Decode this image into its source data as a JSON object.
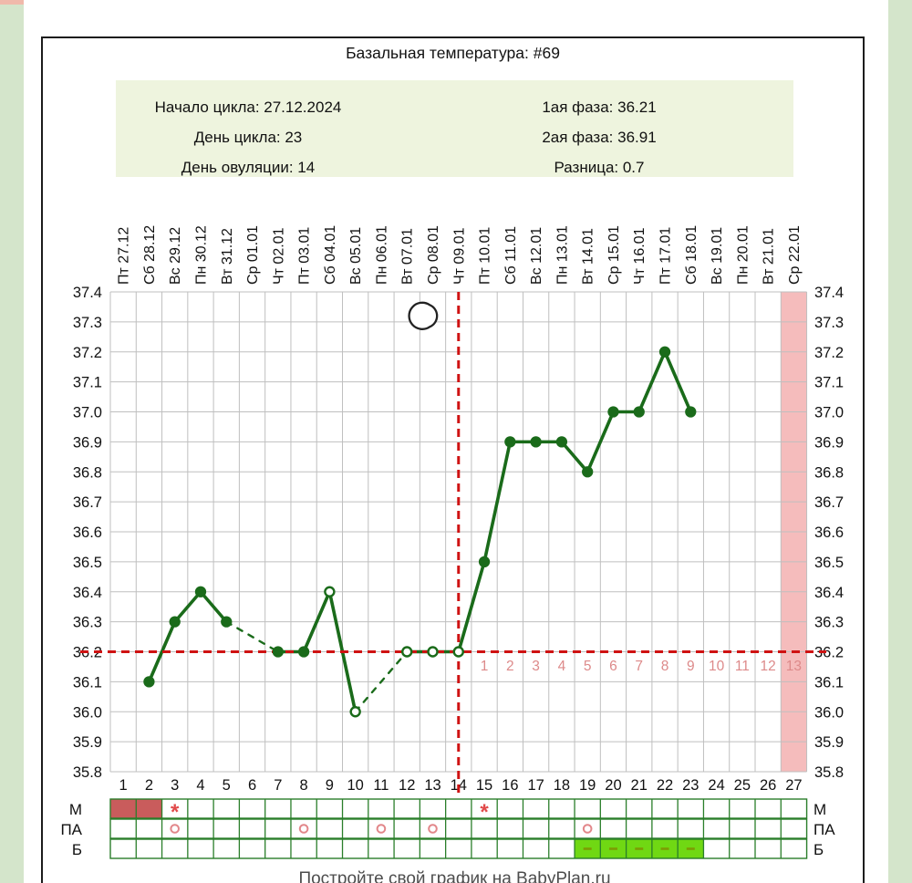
{
  "header": {
    "title": "Базальная температура: #69"
  },
  "info": {
    "left_lines": [
      "Начало цикла: 27.12.2024",
      "День цикла: 23",
      "День овуляции: 14"
    ],
    "right_lines": [
      "1ая фаза: 36.21",
      "2ая фаза: 36.91",
      "Разница: 0.7"
    ]
  },
  "footer": {
    "text": "Постройте свой график на BabyPlan.ru"
  },
  "colors": {
    "line": "#1a6b1a",
    "coverline": "#cf1212",
    "ovulation_line": "#cf1212",
    "dpo_text": "#dd8a8a",
    "grid": "#bfbfbf",
    "axis_text": "#111111",
    "highlight_column": "#f5bcbc",
    "menstruation_fill": "#c95c5c",
    "star": "#e14a4a",
    "circle_mark": "#e2878a",
    "b_cell_fill": "#70d813",
    "b_dash": "#7d9c04",
    "table_border": "#2a7e2a",
    "info_box_bg": "#eef4de",
    "page_strip": "#d4e5cb",
    "corner_block": "#f0b9ab",
    "moon_stroke": "#222222"
  },
  "chart_data": {
    "type": "line",
    "title": "Базальная температура: #69",
    "y_unit": "°C",
    "ylim": [
      35.8,
      37.4
    ],
    "y_tick_step": 0.1,
    "y_tick_labels": [
      "37.4",
      "37.3",
      "37.2",
      "37.1",
      "37.0",
      "36.9",
      "36.8",
      "36.7",
      "36.6",
      "36.5",
      "36.4",
      "36.3",
      "36.2",
      "36.1",
      "36.0",
      "35.9",
      "35.8"
    ],
    "x_days_total": 27,
    "date_labels": [
      "Пт 27.12",
      "Сб 28.12",
      "Вс 29.12",
      "Пн 30.12",
      "Вт 31.12",
      "Ср 01.01",
      "Чт 02.01",
      "Пт 03.01",
      "Сб 04.01",
      "Вс 05.01",
      "Пн 06.01",
      "Вт 07.01",
      "Ср 08.01",
      "Чт 09.01",
      "Пт 10.01",
      "Сб 11.01",
      "Вс 12.01",
      "Пн 13.01",
      "Вт 14.01",
      "Ср 15.01",
      "Чт 16.01",
      "Пт 17.01",
      "Сб 18.01",
      "Вс 19.01",
      "Пн 20.01",
      "Вт 21.01",
      "Ср 22.01"
    ],
    "day_labels": [
      "1",
      "2",
      "3",
      "4",
      "5",
      "6",
      "7",
      "8",
      "9",
      "10",
      "11",
      "12",
      "13",
      "14",
      "15",
      "16",
      "17",
      "18",
      "19",
      "20",
      "21",
      "22",
      "23",
      "24",
      "25",
      "26",
      "27"
    ],
    "series": [
      {
        "name": "Базальная температура",
        "points": [
          {
            "day": 2,
            "temp": 36.1,
            "marker": "filled"
          },
          {
            "day": 3,
            "temp": 36.3,
            "marker": "filled"
          },
          {
            "day": 4,
            "temp": 36.4,
            "marker": "filled"
          },
          {
            "day": 5,
            "temp": 36.3,
            "marker": "filled"
          },
          {
            "day": 7,
            "temp": 36.2,
            "marker": "filled"
          },
          {
            "day": 8,
            "temp": 36.2,
            "marker": "filled"
          },
          {
            "day": 9,
            "temp": 36.4,
            "marker": "open"
          },
          {
            "day": 10,
            "temp": 36.0,
            "marker": "open"
          },
          {
            "day": 12,
            "temp": 36.2,
            "marker": "open"
          },
          {
            "day": 13,
            "temp": 36.2,
            "marker": "open"
          },
          {
            "day": 14,
            "temp": 36.2,
            "marker": "open"
          },
          {
            "day": 15,
            "temp": 36.5,
            "marker": "filled"
          },
          {
            "day": 16,
            "temp": 36.9,
            "marker": "filled"
          },
          {
            "day": 17,
            "temp": 36.9,
            "marker": "filled"
          },
          {
            "day": 18,
            "temp": 36.9,
            "marker": "filled"
          },
          {
            "day": 19,
            "temp": 36.8,
            "marker": "filled"
          },
          {
            "day": 20,
            "temp": 37.0,
            "marker": "filled"
          },
          {
            "day": 21,
            "temp": 37.0,
            "marker": "filled"
          },
          {
            "day": 22,
            "temp": 37.2,
            "marker": "filled"
          },
          {
            "day": 23,
            "temp": 37.0,
            "marker": "filled"
          }
        ]
      }
    ],
    "missing_days": [
      1,
      6,
      11,
      24,
      25,
      26,
      27
    ],
    "coverline_temp": 36.2,
    "ovulation_day": 14,
    "dpo_start_day": 15,
    "dpo_labels": [
      "1",
      "2",
      "3",
      "4",
      "5",
      "6",
      "7",
      "8",
      "9",
      "10",
      "11",
      "12",
      "13"
    ],
    "moon_icon": {
      "day": 12.6,
      "temp": 37.33
    },
    "highlight_column_day": 27,
    "annotation_rows": [
      {
        "label": "М",
        "filled_days": [
          1,
          2
        ],
        "star_days": [
          3,
          15
        ]
      },
      {
        "label": "ПА",
        "circle_days": [
          3,
          8,
          11,
          13,
          19
        ]
      },
      {
        "label": "Б",
        "dash_days": [
          19,
          20,
          21,
          22,
          23
        ]
      }
    ],
    "legend_position": "none",
    "grid": true
  }
}
